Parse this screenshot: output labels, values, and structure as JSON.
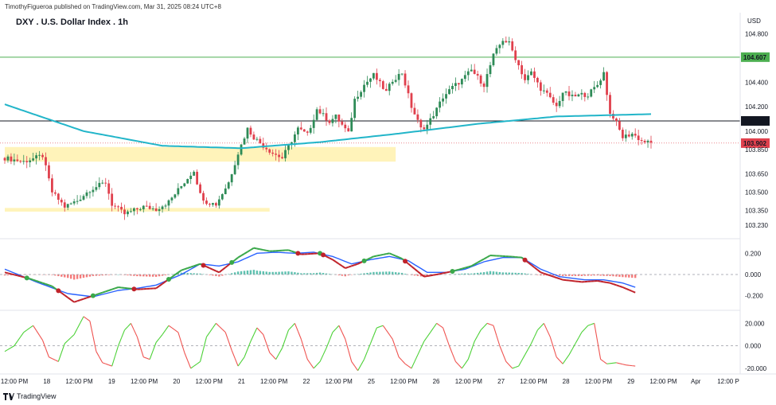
{
  "header": {
    "attribution": "TimothyFigueroa published on TradingView.com, Mar 31, 2025 08:24 UTC+8",
    "symbol_title": "DXY . U.S. Dollar Index . 1h",
    "currency": "USD",
    "brand": "TradingView"
  },
  "colors": {
    "up": "#2e8b57",
    "down": "#e0404d",
    "ma": "#22b5c9",
    "zone": "#fff2b3",
    "macd_fast_up": "#3aa84a",
    "macd_fast_down": "#c0232b",
    "macd_signal": "#2962ff",
    "hist_pos": "#5fc1b0",
    "hist_neg": "#f57c7c",
    "osc_up": "#4cd137",
    "osc_down": "#ef5350",
    "hline_green": "#4caf50"
  },
  "chart_data": [
    {
      "type": "candlestick",
      "title": "DXY . U.S. Dollar Index . 1h",
      "y_ticks": [
        "104.800",
        "104.400",
        "104.200",
        "104.000",
        "103.850",
        "103.650",
        "103.500",
        "103.350",
        "103.230"
      ],
      "ylim": [
        103.17,
        104.88
      ],
      "x_ticks": [
        "12:00 PM",
        "18",
        "12:00 PM",
        "19",
        "12:00 PM",
        "20",
        "12:00 PM",
        "21",
        "12:00 PM",
        "22",
        "12:00 PM",
        "25",
        "12:00 PM",
        "26",
        "12:00 PM",
        "27",
        "12:00 PM",
        "28",
        "12:00 PM",
        "29",
        "12:00 PM",
        "Apr",
        "12:00 P"
      ],
      "price_labels": [
        {
          "value": 104.607,
          "text": "104.607",
          "color": "#4caf50"
        },
        {
          "value": 104.084,
          "text": "104.084",
          "color": "#131722"
        },
        {
          "value": 103.902,
          "text": "103.902",
          "color": "#e0404d"
        }
      ],
      "close_path": [
        [
          0,
          103.78
        ],
        [
          6,
          103.75
        ],
        [
          12,
          103.8
        ],
        [
          15,
          103.5
        ],
        [
          19,
          103.38
        ],
        [
          23,
          103.43
        ],
        [
          27,
          103.52
        ],
        [
          32,
          103.58
        ],
        [
          34,
          103.4
        ],
        [
          38,
          103.32
        ],
        [
          44,
          103.38
        ],
        [
          48,
          103.36
        ],
        [
          52,
          103.42
        ],
        [
          56,
          103.55
        ],
        [
          60,
          103.68
        ],
        [
          62,
          103.48
        ],
        [
          64,
          103.42
        ],
        [
          67,
          103.4
        ],
        [
          71,
          103.58
        ],
        [
          74,
          103.82
        ],
        [
          77,
          104.02
        ],
        [
          79,
          103.95
        ],
        [
          82,
          103.88
        ],
        [
          85,
          103.82
        ],
        [
          88,
          103.78
        ],
        [
          93,
          104.02
        ],
        [
          96,
          103.97
        ],
        [
          99,
          104.18
        ],
        [
          103,
          104.08
        ],
        [
          105,
          104.12
        ],
        [
          109,
          103.98
        ],
        [
          111,
          104.26
        ],
        [
          114,
          104.38
        ],
        [
          117,
          104.46
        ],
        [
          121,
          104.32
        ],
        [
          123,
          104.42
        ],
        [
          126,
          104.48
        ],
        [
          129,
          104.2
        ],
        [
          132,
          104.02
        ],
        [
          134,
          104.05
        ],
        [
          137,
          104.18
        ],
        [
          139,
          104.28
        ],
        [
          142,
          104.36
        ],
        [
          145,
          104.42
        ],
        [
          148,
          104.5
        ],
        [
          152,
          104.38
        ],
        [
          155,
          104.62
        ],
        [
          158,
          104.75
        ],
        [
          160,
          104.72
        ],
        [
          162,
          104.6
        ],
        [
          165,
          104.42
        ],
        [
          167,
          104.48
        ],
        [
          170,
          104.35
        ],
        [
          172,
          104.3
        ],
        [
          175,
          104.2
        ],
        [
          177,
          104.32
        ],
        [
          180,
          104.28
        ],
        [
          183,
          104.3
        ],
        [
          185,
          104.3
        ],
        [
          188,
          104.38
        ],
        [
          190,
          104.48
        ],
        [
          192,
          104.14
        ],
        [
          193,
          104.12
        ],
        [
          196,
          103.95
        ],
        [
          199,
          103.98
        ],
        [
          202,
          103.92
        ],
        [
          205,
          103.9
        ]
      ],
      "ma": [
        [
          0,
          104.22
        ],
        [
          25,
          104.0
        ],
        [
          50,
          103.88
        ],
        [
          75,
          103.86
        ],
        [
          100,
          103.91
        ],
        [
          125,
          103.98
        ],
        [
          150,
          104.06
        ],
        [
          175,
          104.12
        ],
        [
          205,
          104.14
        ]
      ],
      "zones": [
        {
          "x0": 0,
          "x1": 124,
          "y0": 103.75,
          "y1": 103.87
        },
        {
          "x0": 0,
          "x1": 84,
          "y0": 103.34,
          "y1": 103.37
        }
      ]
    },
    {
      "type": "line",
      "y_ticks": [
        "0.200",
        "0.000",
        "-0.200"
      ],
      "ylim": [
        -0.3,
        0.3
      ],
      "series": [
        {
          "values": [
            [
              0,
              0.02
            ],
            [
              8,
              -0.04
            ],
            [
              15,
              -0.11
            ],
            [
              22,
              -0.26
            ],
            [
              30,
              -0.18
            ],
            [
              36,
              -0.12
            ],
            [
              42,
              -0.14
            ],
            [
              48,
              -0.13
            ],
            [
              56,
              0.04
            ],
            [
              62,
              0.1
            ],
            [
              68,
              0.02
            ],
            [
              74,
              0.16
            ],
            [
              79,
              0.25
            ],
            [
              84,
              0.22
            ],
            [
              90,
              0.23
            ],
            [
              94,
              0.19
            ],
            [
              100,
              0.2
            ],
            [
              104,
              0.14
            ],
            [
              108,
              0.06
            ],
            [
              112,
              0.1
            ],
            [
              117,
              0.17
            ],
            [
              122,
              0.2
            ],
            [
              126,
              0.15
            ],
            [
              133,
              -0.02
            ],
            [
              137,
              0.0
            ],
            [
              142,
              0.03
            ],
            [
              148,
              0.08
            ],
            [
              154,
              0.18
            ],
            [
              160,
              0.17
            ],
            [
              164,
              0.16
            ],
            [
              170,
              0.02
            ],
            [
              177,
              -0.05
            ],
            [
              183,
              -0.07
            ],
            [
              188,
              -0.06
            ],
            [
              192,
              -0.08
            ],
            [
              196,
              -0.12
            ],
            [
              200,
              -0.17
            ]
          ]
        },
        {
          "values": [
            [
              0,
              0.05
            ],
            [
              10,
              -0.07
            ],
            [
              20,
              -0.18
            ],
            [
              28,
              -0.21
            ],
            [
              36,
              -0.15
            ],
            [
              42,
              -0.13
            ],
            [
              48,
              -0.1
            ],
            [
              56,
              0.0
            ],
            [
              62,
              0.1
            ],
            [
              68,
              0.08
            ],
            [
              74,
              0.12
            ],
            [
              80,
              0.2
            ],
            [
              86,
              0.21
            ],
            [
              92,
              0.2
            ],
            [
              98,
              0.21
            ],
            [
              104,
              0.17
            ],
            [
              110,
              0.1
            ],
            [
              116,
              0.14
            ],
            [
              122,
              0.17
            ],
            [
              128,
              0.13
            ],
            [
              134,
              0.02
            ],
            [
              140,
              0.02
            ],
            [
              146,
              0.05
            ],
            [
              152,
              0.12
            ],
            [
              158,
              0.16
            ],
            [
              164,
              0.16
            ],
            [
              170,
              0.05
            ],
            [
              176,
              -0.02
            ],
            [
              184,
              -0.05
            ],
            [
              190,
              -0.05
            ],
            [
              196,
              -0.08
            ],
            [
              200,
              -0.12
            ]
          ]
        }
      ]
    },
    {
      "type": "line",
      "y_ticks": [
        "20.000",
        "0.000",
        "-20.000"
      ],
      "ylim": [
        -25,
        28
      ],
      "series": [
        {
          "values": [
            [
              0,
              -5
            ],
            [
              3,
              0
            ],
            [
              6,
              12
            ],
            [
              9,
              18
            ],
            [
              12,
              5
            ],
            [
              14,
              -10
            ],
            [
              17,
              -14
            ],
            [
              19,
              2
            ],
            [
              22,
              10
            ],
            [
              25,
              26
            ],
            [
              27,
              22
            ],
            [
              29,
              -5
            ],
            [
              31,
              -15
            ],
            [
              34,
              -18
            ],
            [
              36,
              0
            ],
            [
              38,
              14
            ],
            [
              40,
              20
            ],
            [
              42,
              8
            ],
            [
              44,
              -10
            ],
            [
              46,
              -12
            ],
            [
              48,
              3
            ],
            [
              50,
              10
            ],
            [
              52,
              18
            ],
            [
              55,
              12
            ],
            [
              57,
              -6
            ],
            [
              59,
              -20
            ],
            [
              62,
              -14
            ],
            [
              64,
              8
            ],
            [
              67,
              20
            ],
            [
              70,
              12
            ],
            [
              72,
              -4
            ],
            [
              74,
              -18
            ],
            [
              76,
              -10
            ],
            [
              78,
              4
            ],
            [
              80,
              16
            ],
            [
              82,
              10
            ],
            [
              84,
              -6
            ],
            [
              86,
              -12
            ],
            [
              88,
              -2
            ],
            [
              90,
              14
            ],
            [
              92,
              20
            ],
            [
              94,
              6
            ],
            [
              96,
              -12
            ],
            [
              98,
              -20
            ],
            [
              100,
              -14
            ],
            [
              102,
              -2
            ],
            [
              104,
              12
            ],
            [
              106,
              18
            ],
            [
              108,
              6
            ],
            [
              110,
              -14
            ],
            [
              112,
              -22
            ],
            [
              114,
              -12
            ],
            [
              116,
              2
            ],
            [
              118,
              16
            ],
            [
              120,
              18
            ],
            [
              123,
              6
            ],
            [
              125,
              -10
            ],
            [
              127,
              -16
            ],
            [
              129,
              -20
            ],
            [
              131,
              -8
            ],
            [
              133,
              4
            ],
            [
              135,
              12
            ],
            [
              137,
              20
            ],
            [
              139,
              16
            ],
            [
              141,
              0
            ],
            [
              143,
              -14
            ],
            [
              145,
              -20
            ],
            [
              147,
              -12
            ],
            [
              149,
              4
            ],
            [
              151,
              14
            ],
            [
              153,
              20
            ],
            [
              155,
              18
            ],
            [
              157,
              0
            ],
            [
              159,
              -14
            ],
            [
              161,
              -20
            ],
            [
              163,
              -18
            ],
            [
              165,
              -8
            ],
            [
              167,
              2
            ],
            [
              169,
              14
            ],
            [
              171,
              20
            ],
            [
              173,
              8
            ],
            [
              175,
              -10
            ],
            [
              177,
              -16
            ],
            [
              179,
              -8
            ],
            [
              181,
              2
            ],
            [
              183,
              12
            ],
            [
              185,
              18
            ],
            [
              187,
              20
            ],
            [
              189,
              -12
            ],
            [
              191,
              -16
            ],
            [
              194,
              -15
            ],
            [
              197,
              -17
            ],
            [
              200,
              -18
            ]
          ]
        }
      ]
    }
  ]
}
